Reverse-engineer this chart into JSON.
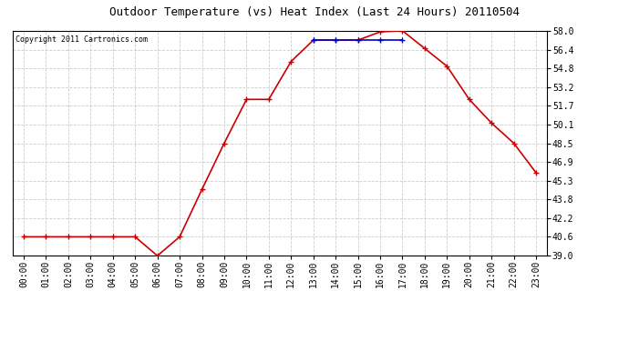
{
  "title": "Outdoor Temperature (vs) Heat Index (Last 24 Hours) 20110504",
  "copyright": "Copyright 2011 Cartronics.com",
  "x_labels": [
    "00:00",
    "01:00",
    "02:00",
    "03:00",
    "04:00",
    "05:00",
    "06:00",
    "07:00",
    "08:00",
    "09:00",
    "10:00",
    "11:00",
    "12:00",
    "13:00",
    "14:00",
    "15:00",
    "16:00",
    "17:00",
    "18:00",
    "19:00",
    "20:00",
    "21:00",
    "22:00",
    "23:00"
  ],
  "temp_data": [
    40.6,
    40.6,
    40.6,
    40.6,
    40.6,
    40.6,
    39.0,
    40.6,
    44.6,
    48.5,
    52.2,
    52.2,
    55.4,
    57.2,
    57.2,
    57.2,
    57.9,
    58.0,
    56.5,
    55.0,
    52.2,
    50.2,
    48.5,
    46.0
  ],
  "heat_data": [
    null,
    null,
    null,
    null,
    null,
    null,
    null,
    null,
    null,
    null,
    null,
    null,
    null,
    57.2,
    57.2,
    57.2,
    57.2,
    57.2,
    null,
    null,
    null,
    null,
    null,
    null
  ],
  "y_min": 39.0,
  "y_max": 58.0,
  "y_ticks": [
    39.0,
    40.6,
    42.2,
    43.8,
    45.3,
    46.9,
    48.5,
    50.1,
    51.7,
    53.2,
    54.8,
    56.4,
    58.0
  ],
  "temp_color": "#cc0000",
  "heat_color": "#0000cc",
  "marker": "+",
  "bg_color": "#ffffff",
  "plot_bg_color": "#ffffff",
  "grid_color": "#cccccc",
  "title_fontsize": 9,
  "copyright_fontsize": 6,
  "tick_fontsize": 7,
  "ytick_fontsize": 7
}
